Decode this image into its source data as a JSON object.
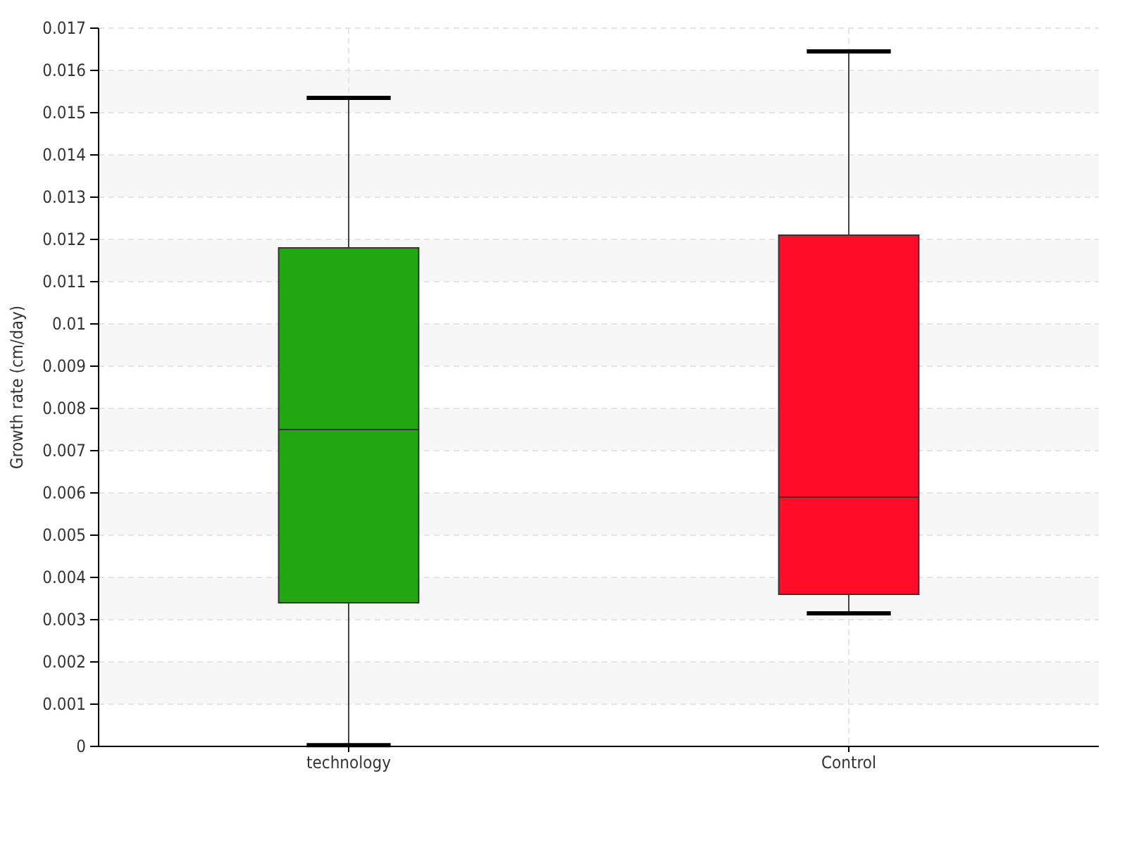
{
  "chart_data": {
    "type": "box",
    "ylabel": "Growth rate (cm/day)",
    "categories": [
      "technology",
      "Control"
    ],
    "boxes": [
      {
        "low": 3e-05,
        "q1": 0.0034,
        "median": 0.0075,
        "q3": 0.0118,
        "high": 0.01535
      },
      {
        "low": 0.00315,
        "q1": 0.0036,
        "median": 0.0059,
        "q3": 0.0121,
        "high": 0.01645
      }
    ],
    "colors": [
      "#22a612",
      "#ff0c28"
    ],
    "ylim": [
      0,
      0.017
    ],
    "yticks": [
      0,
      0.001,
      0.002,
      0.003,
      0.004,
      0.005,
      0.006,
      0.007,
      0.008,
      0.009,
      0.01,
      0.011,
      0.012,
      0.013,
      0.014,
      0.015,
      0.016,
      0.017
    ],
    "grid": true
  }
}
